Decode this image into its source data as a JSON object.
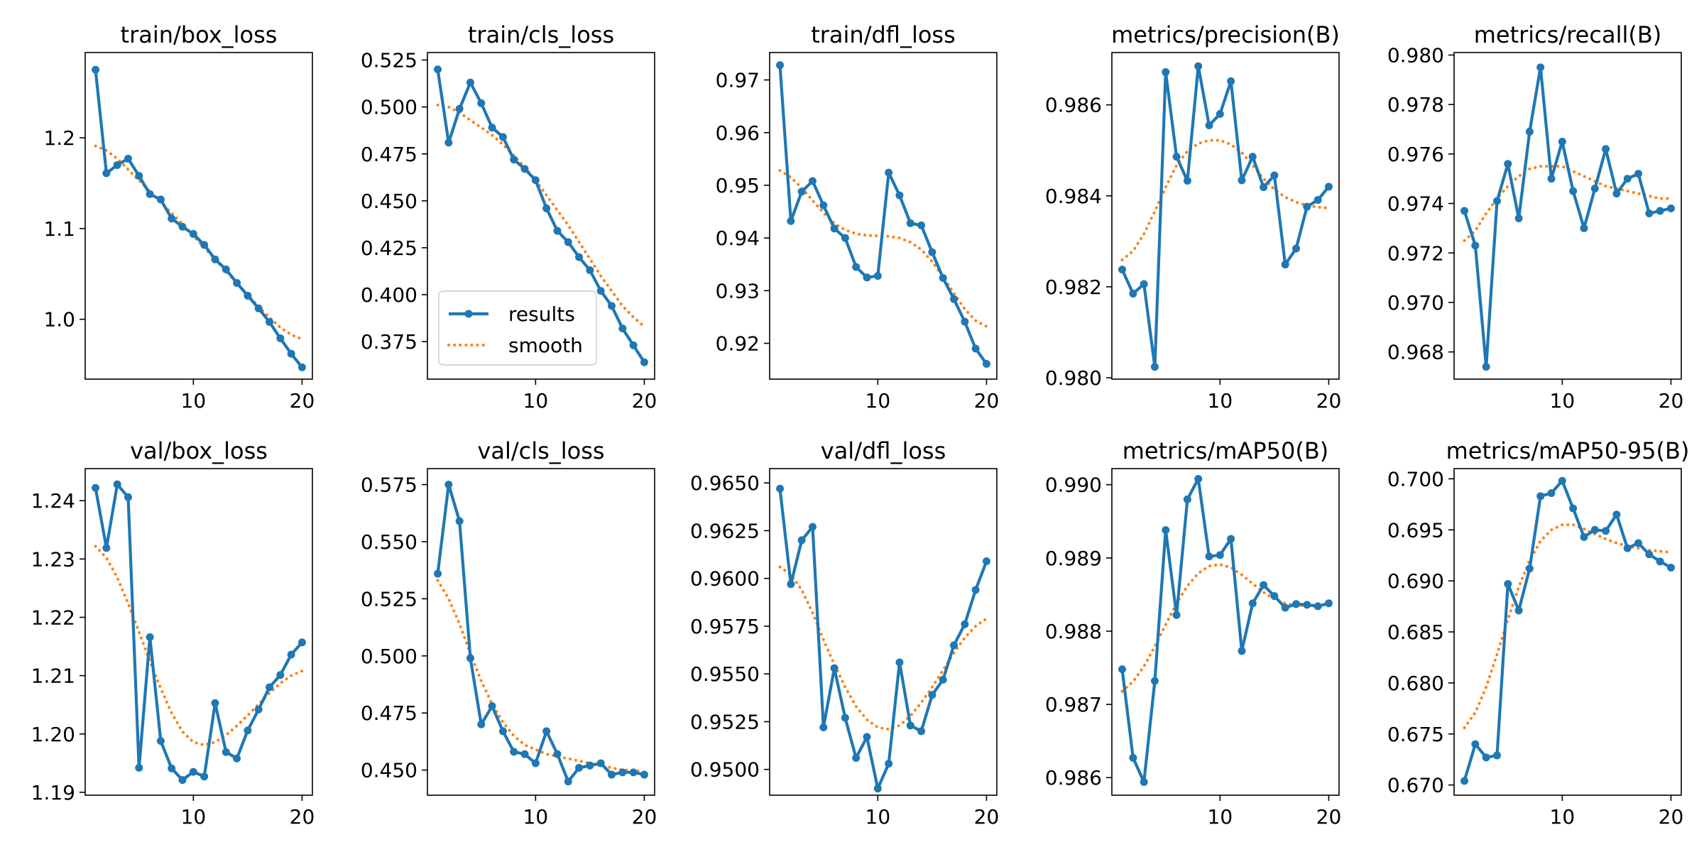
{
  "figure": {
    "colors": {
      "results": "#1f77b4",
      "smooth": "#ff7f0e",
      "axes": "#000000"
    },
    "legend": {
      "results_label": "results",
      "smooth_label": "smooth",
      "placement": "lower-left"
    }
  },
  "chart_data": [
    {
      "type": "line",
      "title": "train/box_loss",
      "x": [
        1,
        2,
        3,
        4,
        5,
        6,
        7,
        8,
        9,
        10,
        11,
        12,
        13,
        14,
        15,
        16,
        17,
        18,
        19,
        20
      ],
      "xlim": [
        0.05,
        20.95
      ],
      "xticks": [
        10,
        20
      ],
      "xtick_labels": [
        "10",
        "20"
      ],
      "ylim": [
        0.934,
        1.294
      ],
      "yticks": [
        1.0,
        1.1,
        1.2
      ],
      "ytick_labels": [
        "1.0",
        "1.1",
        "1.2"
      ],
      "series": [
        {
          "name": "results",
          "values": [
            1.275,
            1.161,
            1.17,
            1.177,
            1.158,
            1.138,
            1.132,
            1.111,
            1.102,
            1.094,
            1.082,
            1.066,
            1.055,
            1.04,
            1.026,
            1.012,
            0.997,
            0.979,
            0.962,
            0.947
          ]
        },
        {
          "name": "smooth",
          "values": [
            1.191,
            1.186,
            1.177,
            1.165,
            1.153,
            1.141,
            1.129,
            1.117,
            1.105,
            1.092,
            1.079,
            1.066,
            1.053,
            1.04,
            1.027,
            1.014,
            1.002,
            0.991,
            0.983,
            0.978
          ]
        }
      ]
    },
    {
      "type": "line",
      "title": "train/cls_loss",
      "x": [
        1,
        2,
        3,
        4,
        5,
        6,
        7,
        8,
        9,
        10,
        11,
        12,
        13,
        14,
        15,
        16,
        17,
        18,
        19,
        20
      ],
      "xlim": [
        0.05,
        20.95
      ],
      "xticks": [
        10,
        20
      ],
      "xtick_labels": [
        "10",
        "20"
      ],
      "ylim": [
        0.355,
        0.529
      ],
      "yticks": [
        0.375,
        0.4,
        0.425,
        0.45,
        0.475,
        0.5,
        0.525
      ],
      "ytick_labels": [
        "0.375",
        "0.400",
        "0.425",
        "0.450",
        "0.475",
        "0.500",
        "0.525"
      ],
      "legend": true,
      "series": [
        {
          "name": "results",
          "values": [
            0.52,
            0.481,
            0.499,
            0.513,
            0.502,
            0.489,
            0.484,
            0.472,
            0.467,
            0.461,
            0.446,
            0.434,
            0.428,
            0.42,
            0.413,
            0.402,
            0.394,
            0.382,
            0.373,
            0.364
          ]
        },
        {
          "name": "smooth",
          "values": [
            0.501,
            0.5,
            0.497,
            0.493,
            0.489,
            0.485,
            0.48,
            0.474,
            0.468,
            0.461,
            0.453,
            0.445,
            0.437,
            0.428,
            0.419,
            0.41,
            0.402,
            0.394,
            0.388,
            0.383
          ]
        }
      ]
    },
    {
      "type": "line",
      "title": "train/dfl_loss",
      "x": [
        1,
        2,
        3,
        4,
        5,
        6,
        7,
        8,
        9,
        10,
        11,
        12,
        13,
        14,
        15,
        16,
        17,
        18,
        19,
        20
      ],
      "xlim": [
        0.05,
        20.95
      ],
      "xticks": [
        10,
        20
      ],
      "xtick_labels": [
        "10",
        "20"
      ],
      "ylim": [
        0.9132,
        0.9752
      ],
      "yticks": [
        0.92,
        0.93,
        0.94,
        0.95,
        0.96,
        0.97
      ],
      "ytick_labels": [
        "0.92",
        "0.93",
        "0.94",
        "0.95",
        "0.96",
        "0.97"
      ],
      "series": [
        {
          "name": "results",
          "values": [
            0.9728,
            0.9432,
            0.9488,
            0.9508,
            0.9462,
            0.9418,
            0.94,
            0.9345,
            0.9325,
            0.9328,
            0.9524,
            0.9481,
            0.9428,
            0.9424,
            0.9373,
            0.9324,
            0.9284,
            0.9241,
            0.919,
            0.9161
          ]
        },
        {
          "name": "smooth",
          "values": [
            0.9528,
            0.9515,
            0.9495,
            0.9471,
            0.9448,
            0.9428,
            0.9415,
            0.9408,
            0.9405,
            0.9404,
            0.9403,
            0.94,
            0.9392,
            0.9378,
            0.9355,
            0.9326,
            0.9295,
            0.9265,
            0.9243,
            0.9232
          ]
        }
      ]
    },
    {
      "type": "line",
      "title": "metrics/precision(B)",
      "x": [
        1,
        2,
        3,
        4,
        5,
        6,
        7,
        8,
        9,
        10,
        11,
        12,
        13,
        14,
        15,
        16,
        17,
        18,
        19,
        20
      ],
      "xlim": [
        0.05,
        20.95
      ],
      "xticks": [
        10,
        20
      ],
      "xtick_labels": [
        "10",
        "20"
      ],
      "ylim": [
        0.97997,
        0.98715
      ],
      "yticks": [
        0.98,
        0.982,
        0.984,
        0.986
      ],
      "ytick_labels": [
        "0.980",
        "0.982",
        "0.984",
        "0.986"
      ],
      "series": [
        {
          "name": "results",
          "values": [
            0.98238,
            0.98185,
            0.98206,
            0.98024,
            0.98672,
            0.98486,
            0.98433,
            0.98685,
            0.98555,
            0.9858,
            0.98652,
            0.98434,
            0.98486,
            0.98419,
            0.98445,
            0.98249,
            0.98284,
            0.98376,
            0.98391,
            0.9842
          ]
        },
        {
          "name": "smooth",
          "values": [
            0.98259,
            0.98279,
            0.98316,
            0.98366,
            0.98419,
            0.98467,
            0.98498,
            0.98515,
            0.98522,
            0.98522,
            0.98513,
            0.98495,
            0.98467,
            0.98438,
            0.98414,
            0.98397,
            0.98386,
            0.98379,
            0.98375,
            0.98373
          ]
        }
      ]
    },
    {
      "type": "line",
      "title": "metrics/recall(B)",
      "x": [
        1,
        2,
        3,
        4,
        5,
        6,
        7,
        8,
        9,
        10,
        11,
        12,
        13,
        14,
        15,
        16,
        17,
        18,
        19,
        20
      ],
      "xlim": [
        0.05,
        20.95
      ],
      "xticks": [
        10,
        20
      ],
      "xtick_labels": [
        "10",
        "20"
      ],
      "ylim": [
        0.9669,
        0.9801
      ],
      "yticks": [
        0.968,
        0.97,
        0.972,
        0.974,
        0.976,
        0.978,
        0.98
      ],
      "ytick_labels": [
        "0.968",
        "0.970",
        "0.972",
        "0.974",
        "0.976",
        "0.978",
        "0.980"
      ],
      "series": [
        {
          "name": "results",
          "values": [
            0.9737,
            0.9723,
            0.9674,
            0.9741,
            0.9756,
            0.9734,
            0.9769,
            0.9795,
            0.975,
            0.9765,
            0.9745,
            0.973,
            0.9746,
            0.9762,
            0.9744,
            0.975,
            0.9752,
            0.9736,
            0.9737,
            0.9738
          ]
        },
        {
          "name": "smooth",
          "values": [
            0.9725,
            0.9729,
            0.9736,
            0.9742,
            0.9747,
            0.9751,
            0.9754,
            0.9755,
            0.9755,
            0.9755,
            0.9753,
            0.9751,
            0.9749,
            0.9747,
            0.9746,
            0.9745,
            0.9744,
            0.9743,
            0.9742,
            0.9742
          ]
        }
      ]
    },
    {
      "type": "line",
      "title": "val/box_loss",
      "x": [
        1,
        2,
        3,
        4,
        5,
        6,
        7,
        8,
        9,
        10,
        11,
        12,
        13,
        14,
        15,
        16,
        17,
        18,
        19,
        20
      ],
      "xlim": [
        0.05,
        20.95
      ],
      "xticks": [
        10,
        20
      ],
      "xtick_labels": [
        "10",
        "20"
      ],
      "ylim": [
        1.1895,
        1.2455
      ],
      "yticks": [
        1.19,
        1.2,
        1.21,
        1.22,
        1.23,
        1.24
      ],
      "ytick_labels": [
        "1.19",
        "1.20",
        "1.21",
        "1.22",
        "1.23",
        "1.24"
      ],
      "series": [
        {
          "name": "results",
          "values": [
            1.2422,
            1.2319,
            1.2428,
            1.2406,
            1.1942,
            1.2166,
            1.1988,
            1.1941,
            1.1921,
            1.1935,
            1.1927,
            1.2053,
            1.1969,
            1.1958,
            1.2006,
            1.2042,
            1.208,
            1.2101,
            1.2136,
            1.2157
          ]
        },
        {
          "name": "smooth",
          "values": [
            1.2322,
            1.2302,
            1.2268,
            1.2224,
            1.2175,
            1.2125,
            1.2078,
            1.2036,
            1.2004,
            1.1986,
            1.1981,
            1.1986,
            1.1998,
            1.2014,
            1.2032,
            1.2051,
            1.207,
            1.2087,
            1.21,
            1.2108
          ]
        }
      ]
    },
    {
      "type": "line",
      "title": "val/cls_loss",
      "x": [
        1,
        2,
        3,
        4,
        5,
        6,
        7,
        8,
        9,
        10,
        11,
        12,
        13,
        14,
        15,
        16,
        17,
        18,
        19,
        20
      ],
      "xlim": [
        0.05,
        20.95
      ],
      "xticks": [
        10,
        20
      ],
      "xtick_labels": [
        "10",
        "20"
      ],
      "ylim": [
        0.439,
        0.582
      ],
      "yticks": [
        0.45,
        0.475,
        0.5,
        0.525,
        0.55,
        0.575
      ],
      "ytick_labels": [
        "0.450",
        "0.475",
        "0.500",
        "0.525",
        "0.550",
        "0.575"
      ],
      "series": [
        {
          "name": "results",
          "values": [
            0.536,
            0.575,
            0.559,
            0.499,
            0.47,
            0.478,
            0.467,
            0.458,
            0.457,
            0.453,
            0.467,
            0.457,
            0.445,
            0.451,
            0.452,
            0.453,
            0.448,
            0.449,
            0.449,
            0.448
          ]
        },
        {
          "name": "smooth",
          "values": [
            0.533,
            0.525,
            0.514,
            0.501,
            0.489,
            0.479,
            0.471,
            0.465,
            0.461,
            0.459,
            0.457,
            0.456,
            0.455,
            0.454,
            0.453,
            0.452,
            0.451,
            0.45,
            0.45,
            0.449
          ]
        }
      ]
    },
    {
      "type": "line",
      "title": "val/dfl_loss",
      "x": [
        1,
        2,
        3,
        4,
        5,
        6,
        7,
        8,
        9,
        10,
        11,
        12,
        13,
        14,
        15,
        16,
        17,
        18,
        19,
        20
      ],
      "xlim": [
        0.05,
        20.95
      ],
      "xticks": [
        10,
        20
      ],
      "xtick_labels": [
        "10",
        "20"
      ],
      "ylim": [
        0.94865,
        0.96575
      ],
      "yticks": [
        0.95,
        0.9525,
        0.955,
        0.9575,
        0.96,
        0.9625,
        0.965
      ],
      "ytick_labels": [
        "0.9500",
        "0.9525",
        "0.9550",
        "0.9575",
        "0.9600",
        "0.9625",
        "0.9650"
      ],
      "series": [
        {
          "name": "results",
          "values": [
            0.9647,
            0.9597,
            0.962,
            0.9627,
            0.9522,
            0.9553,
            0.9527,
            0.9506,
            0.9517,
            0.949,
            0.9503,
            0.9556,
            0.9523,
            0.952,
            0.9539,
            0.9547,
            0.9565,
            0.9576,
            0.9594,
            0.9609
          ]
        },
        {
          "name": "smooth",
          "values": [
            0.9606,
            0.9602,
            0.9594,
            0.9582,
            0.9568,
            0.9555,
            0.9543,
            0.9533,
            0.9526,
            0.9522,
            0.9521,
            0.9523,
            0.9528,
            0.9535,
            0.9543,
            0.9552,
            0.9561,
            0.9569,
            0.9575,
            0.9579
          ]
        }
      ]
    },
    {
      "type": "line",
      "title": "metrics/mAP50(B)",
      "x": [
        1,
        2,
        3,
        4,
        5,
        6,
        7,
        8,
        9,
        10,
        11,
        12,
        13,
        14,
        15,
        16,
        17,
        18,
        19,
        20
      ],
      "xlim": [
        0.05,
        20.95
      ],
      "xticks": [
        10,
        20
      ],
      "xtick_labels": [
        "10",
        "20"
      ],
      "ylim": [
        0.98576,
        0.99022
      ],
      "yticks": [
        0.986,
        0.987,
        0.988,
        0.989,
        0.99
      ],
      "ytick_labels": [
        "0.986",
        "0.987",
        "0.988",
        "0.989",
        "0.990"
      ],
      "series": [
        {
          "name": "results",
          "values": [
            0.98748,
            0.98627,
            0.98594,
            0.98732,
            0.98938,
            0.98822,
            0.9898,
            0.99008,
            0.98902,
            0.98904,
            0.98926,
            0.98773,
            0.98838,
            0.98863,
            0.98848,
            0.98832,
            0.98837,
            0.98836,
            0.98834,
            0.98838
          ]
        },
        {
          "name": "smooth",
          "values": [
            0.98718,
            0.98731,
            0.98752,
            0.98779,
            0.98809,
            0.98838,
            0.98862,
            0.98879,
            0.98889,
            0.98891,
            0.98887,
            0.98877,
            0.98865,
            0.98853,
            0.98844,
            0.98838,
            0.98835,
            0.98835,
            0.98836,
            0.98837
          ]
        }
      ]
    },
    {
      "type": "line",
      "title": "metrics/mAP50-95(B)",
      "x": [
        1,
        2,
        3,
        4,
        5,
        6,
        7,
        8,
        9,
        10,
        11,
        12,
        13,
        14,
        15,
        16,
        17,
        18,
        19,
        20
      ],
      "xlim": [
        0.05,
        20.95
      ],
      "xticks": [
        10,
        20
      ],
      "xtick_labels": [
        "10",
        "20"
      ],
      "ylim": [
        0.669,
        0.701
      ],
      "yticks": [
        0.67,
        0.675,
        0.68,
        0.685,
        0.69,
        0.695,
        0.7
      ],
      "ytick_labels": [
        "0.670",
        "0.675",
        "0.680",
        "0.685",
        "0.690",
        "0.695",
        "0.700"
      ],
      "series": [
        {
          "name": "results",
          "values": [
            0.6704,
            0.674,
            0.6727,
            0.6729,
            0.6897,
            0.6871,
            0.6912,
            0.6983,
            0.6986,
            0.6998,
            0.6971,
            0.6943,
            0.695,
            0.6949,
            0.6965,
            0.6932,
            0.6937,
            0.6926,
            0.6919,
            0.6913
          ]
        },
        {
          "name": "smooth",
          "values": [
            0.6756,
            0.6771,
            0.6796,
            0.6828,
            0.6862,
            0.6894,
            0.692,
            0.6939,
            0.695,
            0.6955,
            0.6955,
            0.6951,
            0.6946,
            0.6941,
            0.6937,
            0.6934,
            0.6932,
            0.693,
            0.6929,
            0.6928
          ]
        }
      ]
    }
  ]
}
